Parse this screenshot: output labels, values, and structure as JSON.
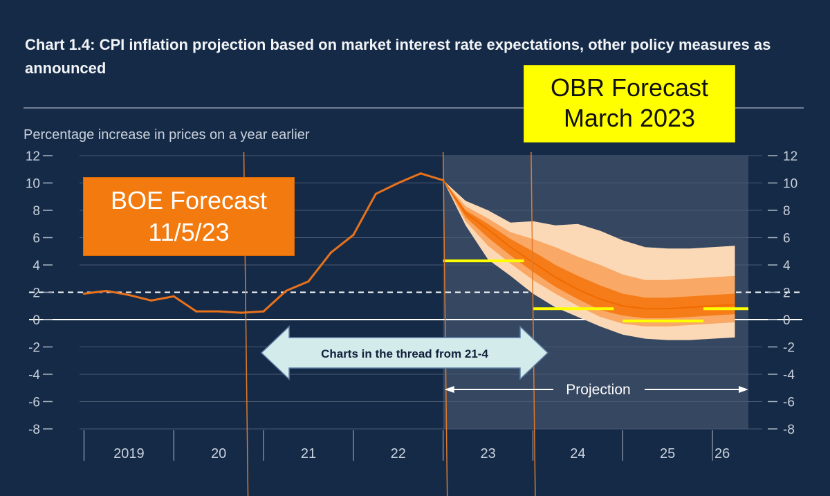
{
  "title": "Chart 1.4: CPI inflation projection based on market interest rate expectations, other policy measures as announced",
  "annotations": {
    "obr": [
      "OBR Forecast",
      "March 2023"
    ],
    "boe": [
      "BOE Forecast",
      "11/5/23"
    ],
    "arrow_label": "Charts in the thread from 21-4",
    "projection_label": "Projection"
  },
  "colors": {
    "background": "#152a47",
    "cpi_line": "#e8721c",
    "fan_light": "#fcd9b6",
    "fan_mid": "#f9a865",
    "fan_dark": "#f57c18",
    "obr_forecast": "#ffff00",
    "target_line": "#ffffff",
    "projection_shade": "#3b4c66",
    "arrow_fill": "#d4ebec"
  },
  "chart_data": {
    "type": "line",
    "ylabel": "Percentage increase in prices on a year earlier",
    "ylim": [
      -8,
      12
    ],
    "yticks": [
      12,
      10,
      8,
      6,
      4,
      2,
      0,
      -2,
      -4,
      -6,
      -8
    ],
    "xlim": [
      2018.95,
      2026.4
    ],
    "xticks": [
      "2019",
      "20",
      "21",
      "22",
      "23",
      "24",
      "25",
      "26"
    ],
    "target": 2,
    "projection_start": 2023.0,
    "series": [
      {
        "name": "CPI inflation",
        "x": [
          2019.0,
          2019.25,
          2019.5,
          2019.75,
          2020.0,
          2020.25,
          2020.5,
          2020.75,
          2021.0,
          2021.25,
          2021.5,
          2021.75,
          2022.0,
          2022.25,
          2022.5,
          2022.75,
          2023.0
        ],
        "y": [
          1.9,
          2.1,
          1.8,
          1.4,
          1.7,
          0.6,
          0.6,
          0.5,
          0.6,
          2.1,
          2.8,
          4.9,
          6.2,
          9.2,
          10.0,
          10.7,
          10.2
        ]
      }
    ],
    "fan_chart": {
      "x": [
        2023.0,
        2023.25,
        2023.5,
        2023.75,
        2024.0,
        2024.25,
        2024.5,
        2024.75,
        2025.0,
        2025.25,
        2025.5,
        2025.75,
        2026.0,
        2026.25
      ],
      "central": [
        10.2,
        7.8,
        6.6,
        5.3,
        4.2,
        3.1,
        2.2,
        1.5,
        1.0,
        0.8,
        0.8,
        0.9,
        1.0,
        1.1
      ],
      "bands": [
        {
          "level": "outer",
          "upper": [
            10.2,
            8.7,
            8.0,
            7.1,
            7.2,
            6.9,
            7.0,
            6.5,
            5.8,
            5.3,
            5.2,
            5.2,
            5.3,
            5.4
          ],
          "lower": [
            10.2,
            6.9,
            4.4,
            3.2,
            1.9,
            0.9,
            0.2,
            -0.5,
            -1.1,
            -1.4,
            -1.5,
            -1.5,
            -1.4,
            -1.3
          ]
        },
        {
          "level": "middle",
          "upper": [
            10.2,
            8.3,
            7.4,
            6.4,
            5.9,
            5.3,
            4.6,
            4.0,
            3.3,
            2.9,
            2.9,
            3.0,
            3.1,
            3.2
          ],
          "lower": [
            10.2,
            7.2,
            5.4,
            4.1,
            2.9,
            1.9,
            1.0,
            0.2,
            -0.3,
            -0.5,
            -0.5,
            -0.4,
            -0.3,
            -0.2
          ]
        },
        {
          "level": "inner",
          "upper": [
            10.2,
            8.0,
            7.0,
            5.9,
            5.0,
            4.0,
            3.2,
            2.5,
            1.9,
            1.6,
            1.6,
            1.7,
            1.8,
            1.9
          ],
          "lower": [
            10.2,
            7.5,
            6.0,
            4.7,
            3.5,
            2.4,
            1.5,
            0.7,
            0.3,
            0.1,
            0.1,
            0.2,
            0.3,
            0.4
          ]
        }
      ]
    },
    "obr_forecast": [
      {
        "x0": 2023.0,
        "x1": 2023.9,
        "y": 4.3
      },
      {
        "x0": 2024.0,
        "x1": 2024.9,
        "y": 0.8
      },
      {
        "x0": 2025.0,
        "x1": 2025.9,
        "y": -0.1
      },
      {
        "x0": 2025.9,
        "x1": 2026.4,
        "y": 0.8
      }
    ]
  }
}
